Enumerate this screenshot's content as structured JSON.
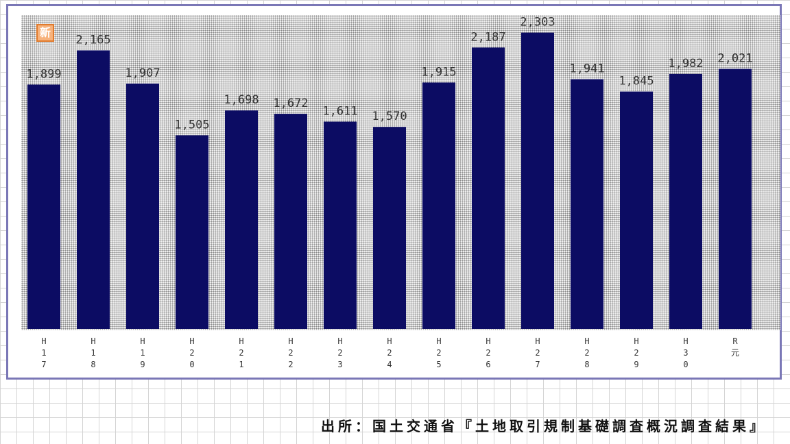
{
  "badge_icon": "new-badge-icon",
  "badge_text": "新",
  "bar_color": "#0c0c63",
  "source_text": "出所：国土交通省『土地取引規制基礎調査概況調査結果』",
  "chart_data": {
    "type": "bar",
    "title": "",
    "xlabel": "",
    "ylabel": "",
    "ylim": [
      0,
      2450
    ],
    "grid": false,
    "categories": [
      "H17",
      "H18",
      "H19",
      "H20",
      "H21",
      "H22",
      "H23",
      "H24",
      "H25",
      "H26",
      "H27",
      "H28",
      "H29",
      "H30",
      "R元"
    ],
    "tick_labels": [
      [
        "H",
        "1",
        "7"
      ],
      [
        "H",
        "1",
        "8"
      ],
      [
        "H",
        "1",
        "9"
      ],
      [
        "H",
        "2",
        "0"
      ],
      [
        "H",
        "2",
        "1"
      ],
      [
        "H",
        "2",
        "2"
      ],
      [
        "H",
        "2",
        "3"
      ],
      [
        "H",
        "2",
        "4"
      ],
      [
        "H",
        "2",
        "5"
      ],
      [
        "H",
        "2",
        "6"
      ],
      [
        "H",
        "2",
        "7"
      ],
      [
        "H",
        "2",
        "8"
      ],
      [
        "H",
        "2",
        "9"
      ],
      [
        "H",
        "3",
        "0"
      ],
      [
        "R",
        "元"
      ]
    ],
    "values": [
      1899,
      2165,
      1907,
      1505,
      1698,
      1672,
      1611,
      1570,
      1915,
      2187,
      2303,
      1941,
      1845,
      1982,
      2021
    ],
    "value_labels": [
      "1,899",
      "2,165",
      "1,907",
      "1,505",
      "1,698",
      "1,672",
      "1,611",
      "1,570",
      "1,915",
      "2,187",
      "2,303",
      "1,941",
      "1,845",
      "1,982",
      "2,021"
    ]
  }
}
